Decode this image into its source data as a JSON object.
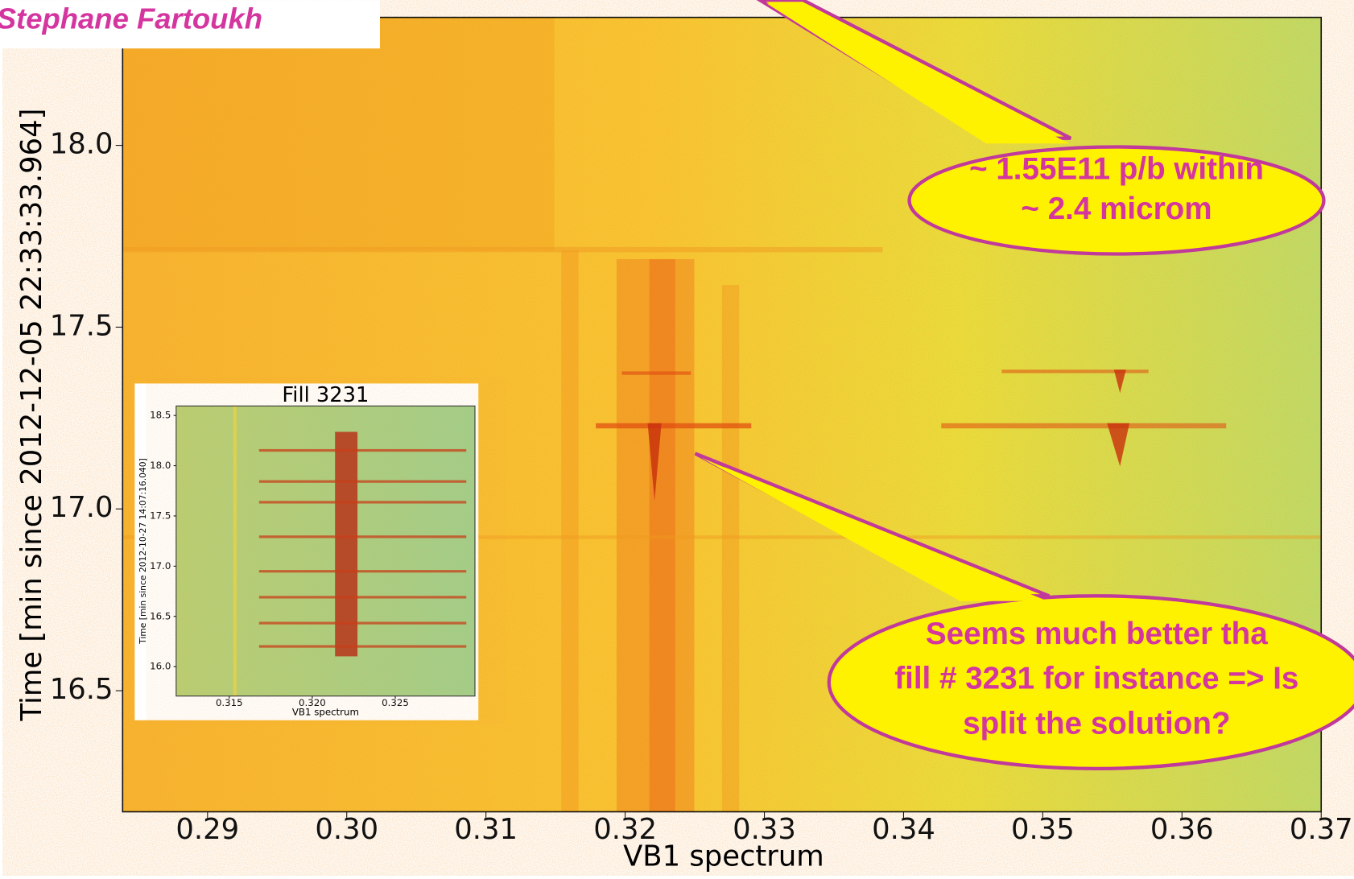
{
  "chart_data": {
    "type": "spectrogram",
    "xlabel": "VB1 spectrum",
    "ylabel": "Time [min since 2012-12-05 22:33:33.964]",
    "xlim": [
      0.2839,
      0.37
    ],
    "xticks": [
      0.29,
      {
        "value": 0.3,
        "label": "0.30"
      },
      0.31,
      0.32,
      0.33,
      0.34,
      0.35,
      0.36,
      0.37
    ],
    "ylim": [
      16.167,
      18.352
    ],
    "yticks": [
      16.5,
      {
        "value": 17,
        "label": "17.0"
      },
      17.5,
      {
        "value": 18,
        "label": "18.0"
      }
    ],
    "author": "Stephane Fartoukh",
    "annotations": [
      {
        "lines": [
          "~ 1.55E11 p/b within",
          "~ 2.4 microm"
        ]
      },
      {
        "lines": [
          "Seems much better tha",
          "fill # 3231 for instance => Is",
          "split the solution?"
        ]
      }
    ],
    "inset": {
      "type": "spectrogram",
      "title": "Fill 3231",
      "xlabel": "VB1 spectrum",
      "ylabel": "Time [min since 2012-10-27 14:07:16.040]",
      "xlim": [
        0.3118,
        0.3298
      ],
      "xticks": [
        0.315,
        {
          "value": 0.32,
          "label": "0.320"
        },
        0.325
      ],
      "ylim": [
        15.707,
        18.595
      ],
      "yticks": [
        {
          "value": 16,
          "label": "16.0"
        },
        16.5,
        {
          "value": 17,
          "label": "17.0"
        },
        17.5,
        {
          "value": 18,
          "label": "18.0"
        },
        18.5
      ]
    }
  }
}
